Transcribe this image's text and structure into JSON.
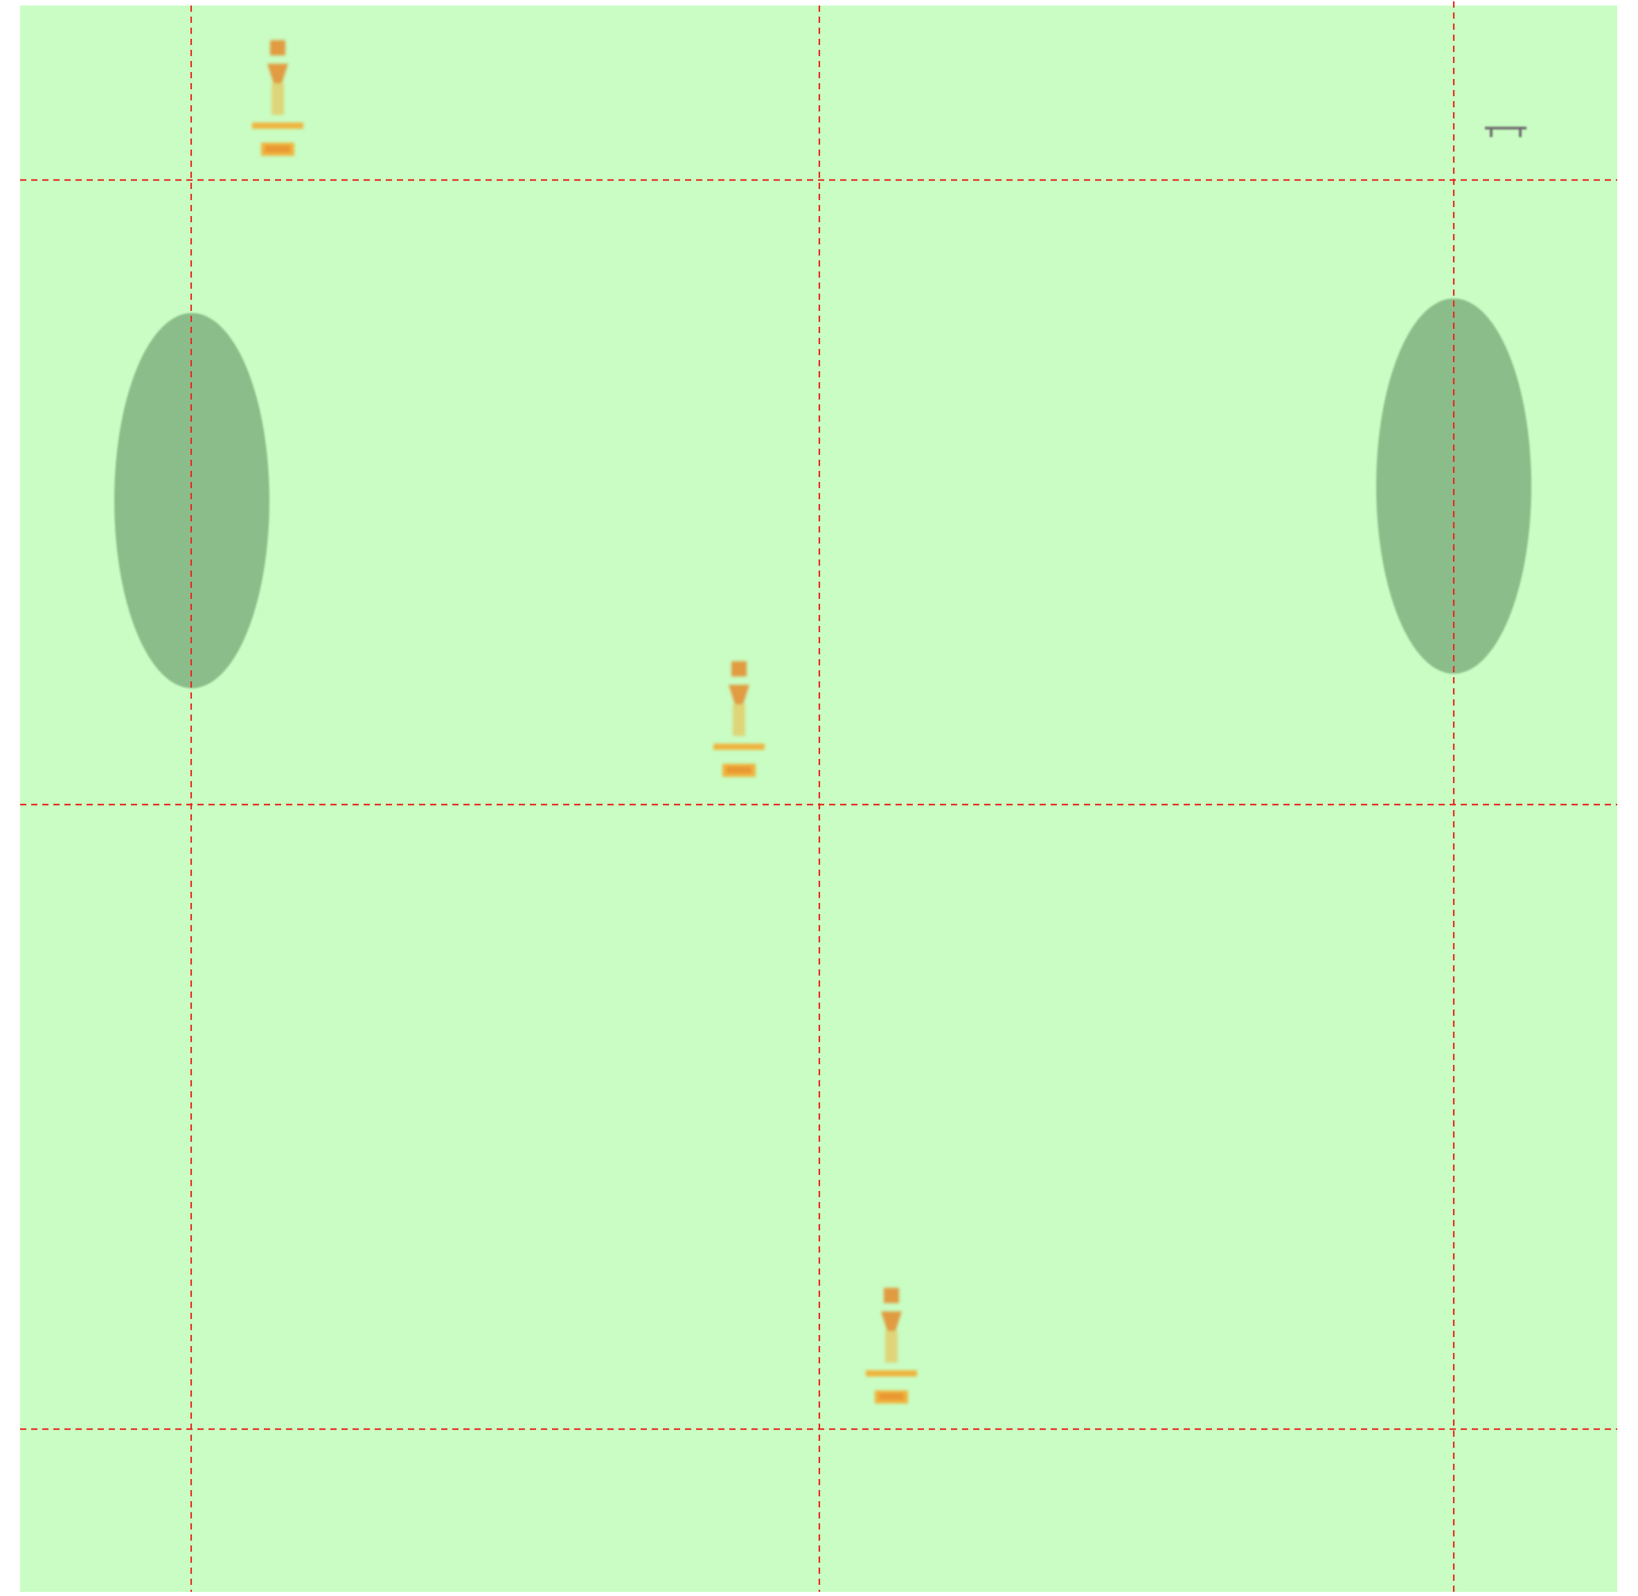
{
  "map": {
    "background_color": "#c9fdc3",
    "page_color": "#ffffff",
    "gridline_color": "#e8261f",
    "gridline_style": "dashed",
    "grid_shown": true,
    "vegetation_color": "#8bbd8b",
    "statue_color": "#f0b43c",
    "statue_accent_color": "#e58a2c",
    "bench_color": "#6e6e6e"
  },
  "features": {
    "statues": [
      {
        "name": "statue-icon",
        "count_in_row": 1
      },
      {
        "name": "statue-icon",
        "count_in_row": 1
      },
      {
        "name": "statue-icon",
        "count_in_row": 1
      }
    ],
    "vegetation": [
      {
        "name": "shrub-patch"
      },
      {
        "name": "shrub-patch"
      }
    ],
    "bench": {
      "name": "bench-icon"
    }
  }
}
